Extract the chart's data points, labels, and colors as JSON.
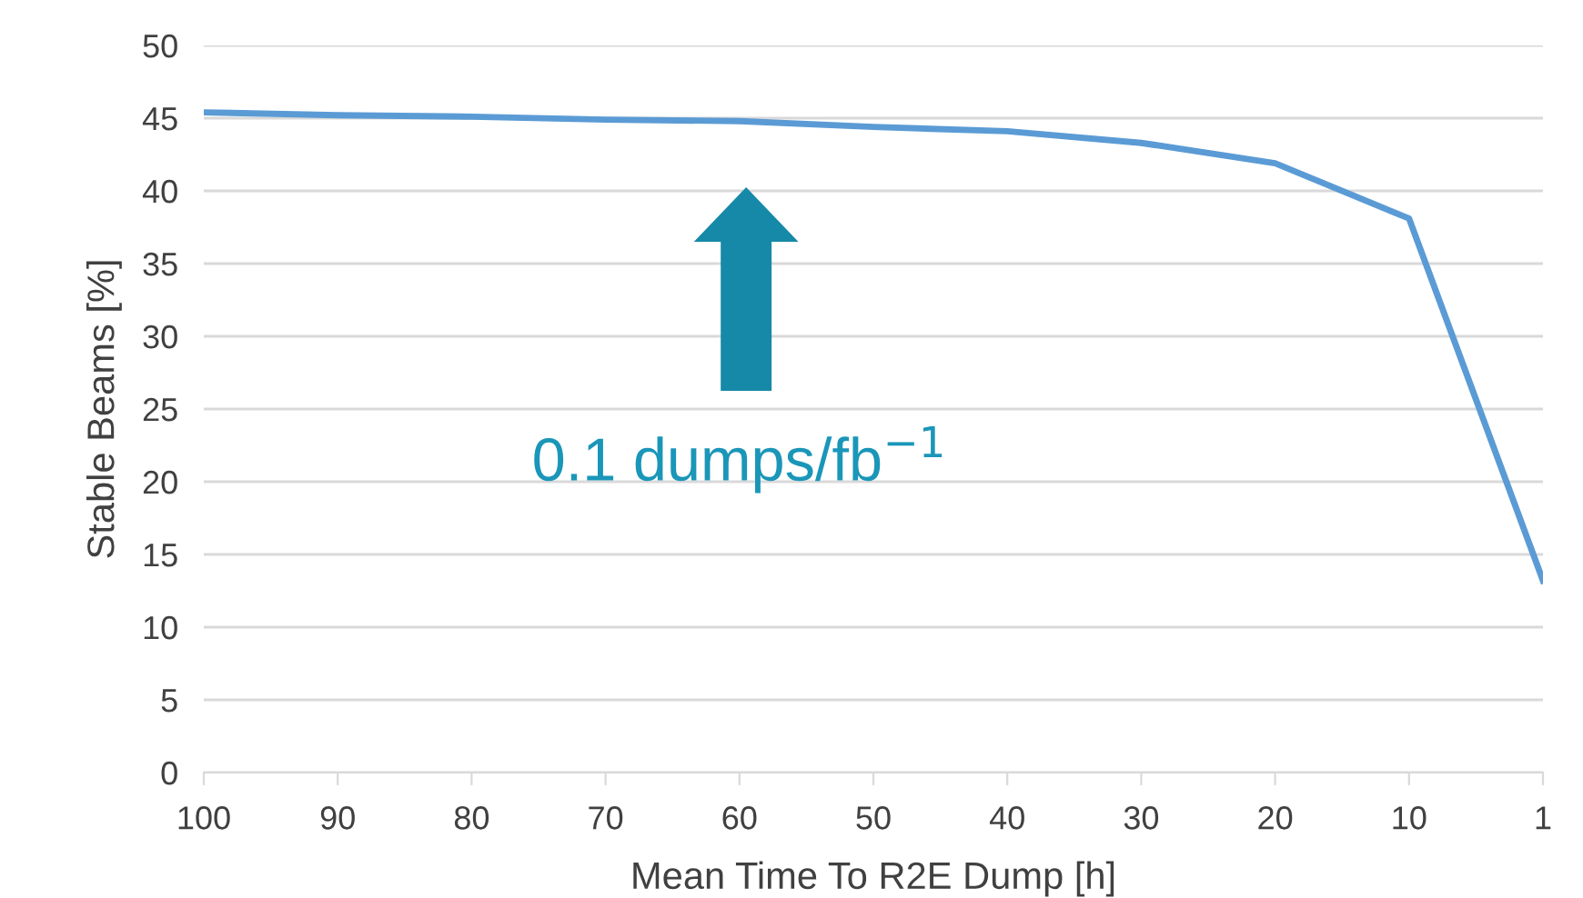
{
  "chart_data": {
    "type": "line",
    "xlabel": "Mean Time To R2E Dump [h]",
    "ylabel": "Stable Beams [%]",
    "categories": [
      "100",
      "90",
      "80",
      "70",
      "60",
      "50",
      "40",
      "30",
      "20",
      "10",
      "1"
    ],
    "series": [
      {
        "color": "#5b9bd5",
        "values": [
          45.4,
          45.2,
          45.1,
          44.9,
          44.8,
          44.4,
          44.1,
          43.3,
          41.9,
          38.1,
          13.2
        ]
      }
    ],
    "ylim": [
      0,
      50
    ],
    "yticks": [
      0,
      5,
      10,
      15,
      20,
      25,
      30,
      35,
      40,
      45,
      50
    ],
    "grid": "y",
    "legend": false,
    "annotations": [
      "0.1 dumps/fb$^{−1}$"
    ]
  }
}
